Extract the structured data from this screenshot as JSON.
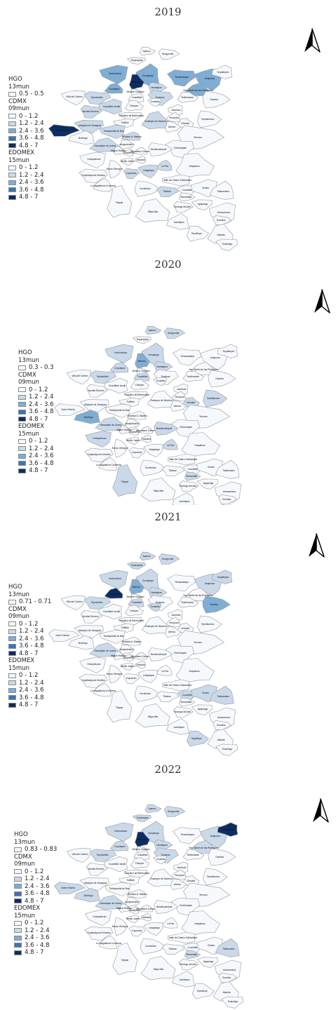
{
  "colors": {
    "c0": "#f5f8fc",
    "c1": "#c9d9ea",
    "c2": "#7fadd4",
    "c3": "#3d75b0",
    "c4": "#0c2d62",
    "border": "#9a9a9a",
    "outline": "#7a7a7a"
  },
  "legend": {
    "hgo_title": "HGO",
    "hgo_sub": "13mun",
    "cdmx_title": "CDMX",
    "cdmx_sub": "09mun",
    "edomex_title": "EDOMEX",
    "edomex_sub": "15mun",
    "bins": [
      "0 - 1.2",
      "1.2 - 2.4",
      "2.4 - 3.6",
      "3.6 - 4.8",
      "4.8 - 7"
    ]
  },
  "north_arrow_icon": "north-arrow-icon",
  "panels": [
    {
      "year": "2019",
      "hgo_range": "0.5 - 0.5"
    },
    {
      "year": "2020",
      "hgo_range": "0.3 - 0.3"
    },
    {
      "year": "2021",
      "hgo_range": "0.71 - 0.71"
    },
    {
      "year": "2022",
      "hgo_range": "0.83 - 0.83"
    }
  ],
  "regions": [
    {
      "id": "apaxco",
      "name": "Apaxco"
    },
    {
      "id": "hueypoxtla",
      "name": "Hueypoxtla"
    },
    {
      "id": "tequixquiac",
      "name": "Tequixquiac"
    },
    {
      "id": "huehuetoca",
      "name": "Huehuetoca"
    },
    {
      "id": "zumpango",
      "name": "Zumpango"
    },
    {
      "id": "coyotepec",
      "name": "Coyotepec"
    },
    {
      "id": "jaltenco",
      "name": "Jaltenco"
    },
    {
      "id": "nextlalpan",
      "name": "Nextlalpan"
    },
    {
      "id": "temascalapa",
      "name": "Temascalapa"
    },
    {
      "id": "axapusco",
      "name": "Axapusco"
    },
    {
      "id": "nopaltepec",
      "name": "Nopaltepec"
    },
    {
      "id": "smpiramides",
      "name": "San Martín de las Pirámides"
    },
    {
      "id": "teotihuacan",
      "name": "Teotihuacán"
    },
    {
      "id": "otumba",
      "name": "Otumba"
    },
    {
      "id": "tepotzotlan",
      "name": "Tepotzotlán"
    },
    {
      "id": "villacarbon",
      "name": "Villa del Carbón"
    },
    {
      "id": "cuautitlanizcalli",
      "name": "Cuautitlán Izcalli"
    },
    {
      "id": "cuautitlan",
      "name": "Cuautitlán"
    },
    {
      "id": "tultepec",
      "name": "Tultepec"
    },
    {
      "id": "melchor",
      "name": "Melchor Ocampo"
    },
    {
      "id": "tecamac",
      "name": "Tecámac"
    },
    {
      "id": "tonanitla",
      "name": "Tonanitla"
    },
    {
      "id": "acolman",
      "name": "Acolman"
    },
    {
      "id": "tezoyuca",
      "name": "Tezoyuca"
    },
    {
      "id": "chiautla",
      "name": "Chiautla"
    },
    {
      "id": "tepetlaoxtoc",
      "name": "Tepetlaoxtoc"
    },
    {
      "id": "nicolasromero",
      "name": "Nicolás Romero"
    },
    {
      "id": "coacalco",
      "name": "Coacalco de Berriozábal"
    },
    {
      "id": "tultitlan",
      "name": "Tultitlán"
    },
    {
      "id": "gamadero",
      "name": "Gustavo A. Madero"
    },
    {
      "id": "ecatepec",
      "name": "Ecatepec de Morelos"
    },
    {
      "id": "atenco",
      "name": "Atenco"
    },
    {
      "id": "isidrofabela",
      "name": "Isidro Fabela"
    },
    {
      "id": "atizapan",
      "name": "Atizapán de Zaragoza"
    },
    {
      "id": "tlalnepantla",
      "name": "Tlalnepantla de Baz"
    },
    {
      "id": "jilotzingo",
      "name": "Jilotzingo"
    },
    {
      "id": "naucalpan",
      "name": "Naucalpan de Juárez"
    },
    {
      "id": "azcapotzalco",
      "name": "Azcapotzalco"
    },
    {
      "id": "texcoco",
      "name": "Texcoco"
    },
    {
      "id": "chicoloapan",
      "name": "Chicoloapan"
    },
    {
      "id": "huixquilucan",
      "name": "Huixquilucan"
    },
    {
      "id": "cuauhtemoc",
      "name": "Cuauhtémoc"
    },
    {
      "id": "venustiano",
      "name": "Venustiano Carranza"
    },
    {
      "id": "miguelhidalgo",
      "name": "Miguel Hidalgo"
    },
    {
      "id": "nezahualcoyotl",
      "name": "Nezahualcóyotl"
    },
    {
      "id": "cuajimalpa",
      "name": "Cuajimalpa de Morelos"
    },
    {
      "id": "benitojuarez",
      "name": "Benito Juárez"
    },
    {
      "id": "iztacalco",
      "name": "Iztacalco"
    },
    {
      "id": "lapaz",
      "name": "La Paz"
    },
    {
      "id": "ixtapaluca",
      "name": "Ixtapaluca"
    },
    {
      "id": "alvaroobregon",
      "name": "Álvaro Obregón"
    },
    {
      "id": "coyoacan",
      "name": "Coyoacán"
    },
    {
      "id": "iztapalapa",
      "name": "Iztapalapa"
    },
    {
      "id": "valle",
      "name": "Valle de Chalco Solidaridad"
    },
    {
      "id": "magdalena",
      "name": "La Magdalena Contreras"
    },
    {
      "id": "tlalpan",
      "name": "Tlalpan"
    },
    {
      "id": "xochimilco",
      "name": "Xochimilco"
    },
    {
      "id": "tlahuac",
      "name": "Tláhuac"
    },
    {
      "id": "cocotitlan",
      "name": "Cocotitlán"
    },
    {
      "id": "chalco",
      "name": "Chalco"
    },
    {
      "id": "tlalmanalco",
      "name": "Tlalmanalco"
    },
    {
      "id": "milpaalta",
      "name": "Milpa Alta"
    },
    {
      "id": "temamatla",
      "name": "Temamatla"
    },
    {
      "id": "tenango",
      "name": "Tenango del Aire"
    },
    {
      "id": "ayapango",
      "name": "Ayapango"
    },
    {
      "id": "amecameca",
      "name": "Amecameca"
    },
    {
      "id": "juchitepec",
      "name": "Juchitepec"
    },
    {
      "id": "atlautla",
      "name": "Atlautla"
    },
    {
      "id": "tepetlixpa",
      "name": "Tepetlixpa"
    },
    {
      "id": "ozumba",
      "name": "Ozumba"
    },
    {
      "id": "ecatzingo",
      "name": "Ecatzingo"
    }
  ],
  "fills": {
    "2019": {
      "huehuetoca": 2,
      "coyotepec": 2,
      "jaltenco": 4,
      "zumpango": 2,
      "nextlalpan": 1,
      "temascalapa": 2,
      "axapusco": 2,
      "smpiramides": 2,
      "isidrofabela": 4,
      "tepotzotlan": 1,
      "cuautitlanizcalli": 1,
      "tecamac": 1,
      "ecatepec": 1,
      "gamadero": 1,
      "nicolasromero": 1,
      "atizapan": 1,
      "tlalnepantla": 1,
      "naucalpan": 1,
      "lapaz": 1,
      "iztapalapa": 1,
      "tlahuac": 1,
      "coyoacan": 1
    },
    "2020": {
      "huehuetoca": 1,
      "coyotepec": 1,
      "jaltenco": 2,
      "zumpango": 1,
      "nextlalpan": 1,
      "tepotzotlan": 1,
      "hueypoxtla": 1,
      "apaxco": 1,
      "jilotzingo": 2,
      "naucalpan": 1,
      "chiautla": 1,
      "tepetlaoxtoc": 1,
      "huixquilucan": 1,
      "nezahualcoyotl": 1,
      "lapaz": 1,
      "tlalpan": 1,
      "temamatla": 1,
      "tepetlixpa": 1,
      "cuautitlan": 1
    },
    "2021": {
      "coyotepec": 4,
      "jaltenco": 2,
      "huehuetoca": 1,
      "zumpango": 1,
      "tequixquiac": 1,
      "hueypoxtla": 1,
      "apaxco": 1,
      "tepotzotlan": 1,
      "nextlalpan": 1,
      "cuautitlan": 1,
      "tonanitla": 1,
      "otumba": 2,
      "axapusco": 1,
      "nopaltepec": 1,
      "naucalpan": 1,
      "cocotitlan": 1,
      "chalco": 1,
      "tlalmanalco": 1,
      "tepetlixpa": 1
    },
    "2022": {
      "nopaltepec": 4,
      "axapusco": 1,
      "smpiramides": 1,
      "coyotepec": 1,
      "jaltenco": 4,
      "huehuetoca": 1,
      "zumpango": 1,
      "tequixquiac": 1,
      "hueypoxtla": 1,
      "apaxco": 1,
      "tepotzotlan": 1,
      "nextlalpan": 1,
      "tecamac": 1,
      "isidrofabela": 1,
      "jilotzingo": 1,
      "naucalpan": 1,
      "tlalmanalco": 1,
      "temamatla": 1
    }
  }
}
